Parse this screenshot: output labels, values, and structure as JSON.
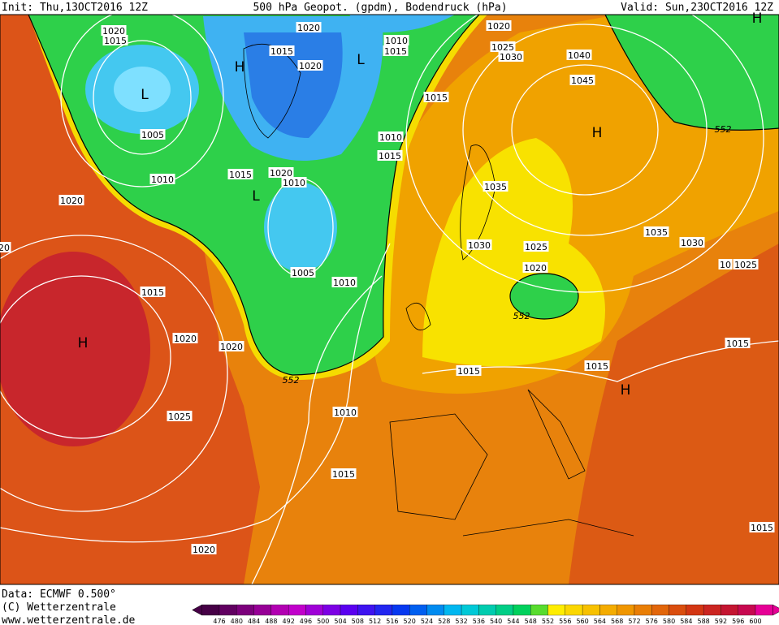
{
  "header": {
    "init": "Init: Thu,13OCT2016 12Z",
    "title": "500 hPa Geopot. (gpdm), Bodendruck (hPa)",
    "valid": "Valid: Sun,23OCT2016 12Z"
  },
  "map": {
    "isobar_labels": [
      "1020",
      "1015",
      "1020",
      "1010",
      "1015",
      "1020",
      "1025",
      "1030",
      "1040",
      "1045",
      "1015",
      "1020",
      "1015",
      "1005",
      "1010",
      "1015",
      "1010",
      "1015",
      "1020",
      "1010",
      "1035",
      "1020",
      "1030",
      "1025",
      "1035",
      "1030",
      "10",
      "1025",
      "1020",
      "1005",
      "1010",
      "1015",
      "1020",
      "1020",
      "1015",
      "1015",
      "1015",
      "1010",
      "1025",
      "1015",
      "1020",
      "1015",
      "20"
    ],
    "contour_labels": [
      "552",
      "552",
      "552"
    ],
    "pressure_centers": [
      "L",
      "H",
      "L",
      "L",
      "H",
      "H",
      "H",
      "H"
    ]
  },
  "footer": {
    "data": "Data: ECMWF  0.500°",
    "copyright": "(C) Wetterzentrale",
    "url": "www.wetterzentrale.de"
  },
  "scale": [
    476,
    480,
    484,
    488,
    492,
    496,
    500,
    504,
    508,
    512,
    516,
    520,
    524,
    528,
    532,
    536,
    540,
    544,
    548,
    552,
    556,
    560,
    564,
    568,
    572,
    576,
    580,
    584,
    588,
    592,
    596,
    600
  ]
}
